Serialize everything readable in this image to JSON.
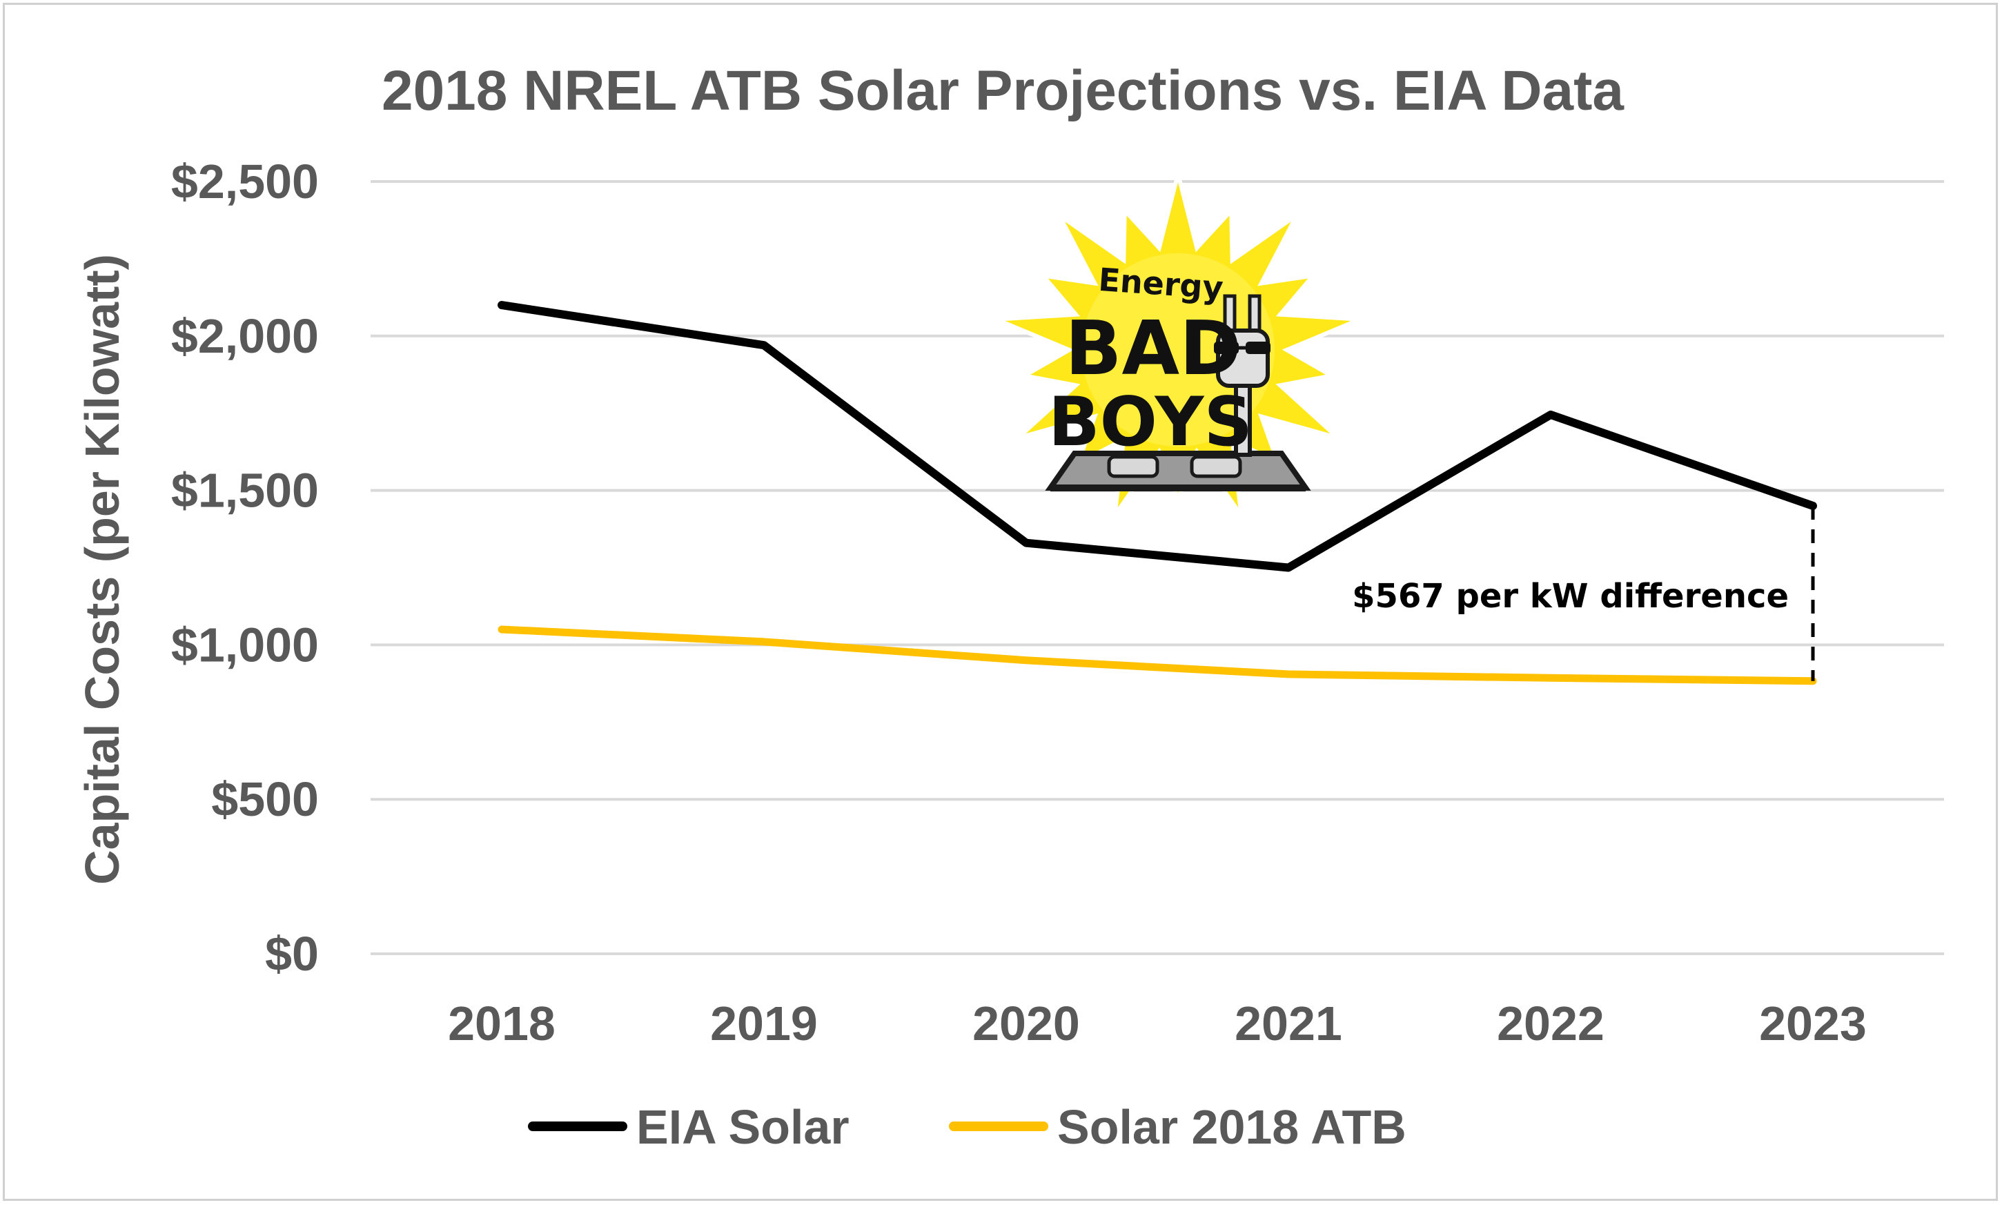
{
  "chart_data": {
    "type": "line",
    "title": "2018 NREL ATB Solar Projections vs. EIA Data",
    "xlabel": "",
    "ylabel": "Capital Costs (per Kilowatt)",
    "categories": [
      "2018",
      "2019",
      "2020",
      "2021",
      "2022",
      "2023"
    ],
    "ylim": [
      0,
      2500
    ],
    "yticks": [
      0,
      500,
      1000,
      1500,
      2000,
      2500
    ],
    "ytick_labels": [
      "$0",
      "$500",
      "$1,000",
      "$1,500",
      "$2,000",
      "$2,500"
    ],
    "grid": true,
    "legend_position": "bottom",
    "series": [
      {
        "name": "EIA Solar",
        "color": "#000000",
        "values": [
          2100,
          1970,
          1330,
          1250,
          1745,
          1450
        ]
      },
      {
        "name": "Solar 2018 ATB",
        "color": "#FFC000",
        "values": [
          1050,
          1010,
          950,
          905,
          893,
          883
        ]
      }
    ],
    "annotation": {
      "text": "$567 per kW difference",
      "category": "2023",
      "from_value": 883,
      "to_value": 1450
    }
  },
  "logo": {
    "name": "Energy Bad Boys",
    "line1": "Energy",
    "line2": "BAD",
    "line3": "BOYS",
    "burst_color": "#FFE81A"
  }
}
